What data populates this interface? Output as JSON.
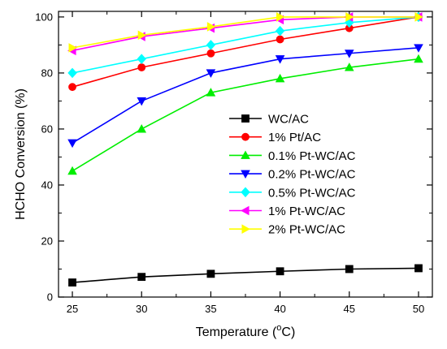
{
  "chart_data": {
    "type": "line",
    "xlabel": "Temperature (",
    "xlabel_degree": "o",
    "xlabel_unit": "C)",
    "ylabel": "HCHO Conversion (%)",
    "xlim": [
      24,
      51
    ],
    "ylim": [
      0,
      102
    ],
    "xticks": [
      25,
      30,
      35,
      40,
      45,
      50
    ],
    "yticks": [
      0,
      20,
      40,
      60,
      80,
      100
    ],
    "x": [
      25,
      30,
      35,
      40,
      45,
      50
    ],
    "legend_position": "center-right",
    "series": [
      {
        "name": "WC/AC",
        "color": "#000000",
        "marker": "square",
        "values": [
          5.2,
          7.2,
          8.3,
          9.2,
          10.0,
          10.3
        ]
      },
      {
        "name": "1% Pt/AC",
        "color": "#ff0000",
        "marker": "circle",
        "values": [
          75,
          82,
          87,
          92,
          96,
          100
        ]
      },
      {
        "name": "0.1% Pt-WC/AC",
        "color": "#00ee00",
        "marker": "triangle-up",
        "values": [
          45,
          60,
          73,
          78,
          82,
          85
        ]
      },
      {
        "name": "0.2% Pt-WC/AC",
        "color": "#0000ff",
        "marker": "triangle-down",
        "values": [
          55,
          70,
          80,
          85,
          87,
          89
        ]
      },
      {
        "name": "0.5% Pt-WC/AC",
        "color": "#00ffff",
        "marker": "diamond",
        "values": [
          80,
          85,
          90,
          95,
          98,
          100
        ]
      },
      {
        "name": "1% Pt-WC/AC",
        "color": "#ff00ff",
        "marker": "triangle-left",
        "values": [
          88,
          93,
          96,
          99,
          100,
          100
        ]
      },
      {
        "name": "2% Pt-WC/AC",
        "color": "#ffff00",
        "marker": "triangle-right",
        "values": [
          89,
          93.5,
          96.5,
          100,
          100,
          100
        ]
      }
    ]
  }
}
